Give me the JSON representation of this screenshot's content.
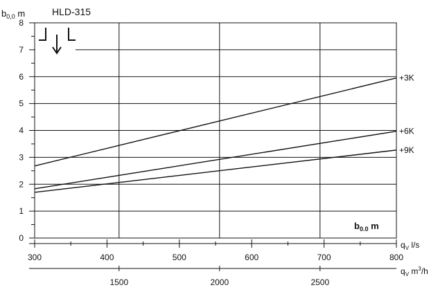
{
  "chart_data": {
    "type": "line",
    "title": "HLD-315",
    "ylabel": {
      "main": "b",
      "sub": "0,0",
      "unit": " m"
    },
    "xlabel_ls": {
      "main": "q",
      "sub": "V",
      "unit": " l/s"
    },
    "xlabel_m3h": {
      "main": "q",
      "sub": "V",
      "unit": " m",
      "sup": "3",
      "tail": "/h"
    },
    "inside_label": {
      "main": "b",
      "sub": "0.0",
      "unit": " m"
    },
    "xlim": [
      300,
      800
    ],
    "ylim": [
      0,
      8
    ],
    "y_ticks": [
      0,
      1,
      2,
      3,
      4,
      5,
      6,
      7,
      8
    ],
    "x_ticks_ls": [
      300,
      400,
      500,
      600,
      700,
      800
    ],
    "x_ticks_m3h": [
      1500,
      2000,
      2500
    ],
    "m3h_range": [
      1080,
      2880
    ],
    "series": [
      {
        "name": "+3K",
        "x": [
          300,
          800
        ],
        "y": [
          2.68,
          5.95
        ]
      },
      {
        "name": "+6K",
        "x": [
          300,
          800
        ],
        "y": [
          1.83,
          3.97
        ]
      },
      {
        "name": "+9K",
        "x": [
          300,
          800
        ],
        "y": [
          1.7,
          3.27
        ]
      }
    ]
  }
}
